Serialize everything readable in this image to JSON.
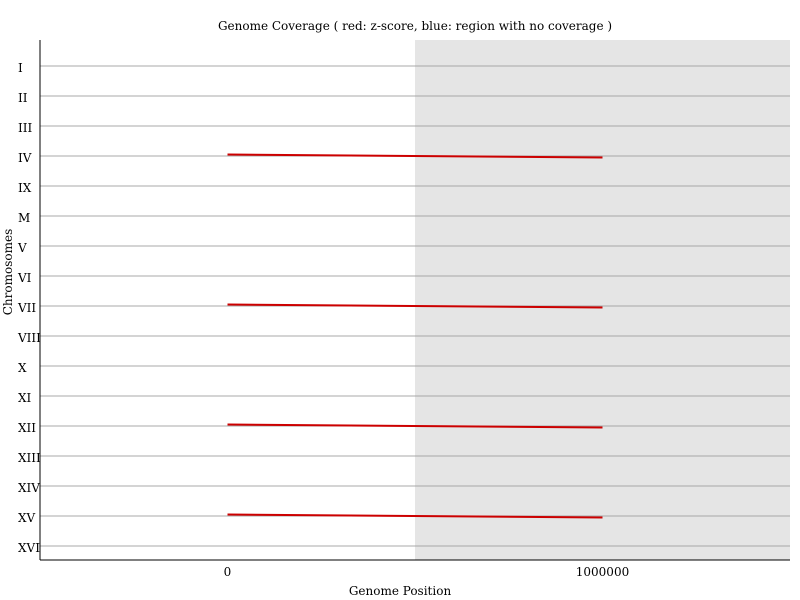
{
  "chart_data": {
    "type": "line",
    "title": "Genome Coverage ( red: z-score, blue: region with no coverage )",
    "xlabel": "Genome Position",
    "ylabel": "Chromosomes",
    "xlim": [
      -500000,
      1500000
    ],
    "x_ticks": [
      {
        "value": 0,
        "label": "0"
      },
      {
        "value": 1000000,
        "label": "1000000"
      }
    ],
    "categories": [
      "I",
      "II",
      "III",
      "IV",
      "IX",
      "M",
      "V",
      "VI",
      "VII",
      "VIII",
      "X",
      "XI",
      "XII",
      "XIII",
      "XIV",
      "XV",
      "XVI"
    ],
    "shaded_region": {
      "x_start": 500000,
      "x_end": 1500000,
      "color": "#e5e5e5"
    },
    "grid": true,
    "series": [
      {
        "category": "IV",
        "color": "#cc0000",
        "x": [
          0,
          1000000
        ],
        "offset": [
          0.05,
          -0.05
        ]
      },
      {
        "category": "VII",
        "color": "#cc0000",
        "x": [
          0,
          1000000
        ],
        "offset": [
          0.05,
          -0.05
        ]
      },
      {
        "category": "XII",
        "color": "#cc0000",
        "x": [
          0,
          1000000
        ],
        "offset": [
          0.05,
          -0.05
        ]
      },
      {
        "category": "XV",
        "color": "#cc0000",
        "x": [
          0,
          1000000
        ],
        "offset": [
          0.05,
          -0.05
        ]
      }
    ]
  }
}
